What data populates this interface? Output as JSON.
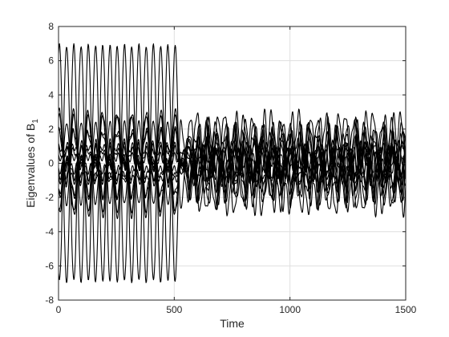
{
  "chart_data": {
    "type": "line",
    "title": "",
    "xlabel": "Time",
    "ylabel": {
      "text": "Eigenvalues of B",
      "subscript": "1"
    },
    "xlim": [
      0,
      1500
    ],
    "ylim": [
      -8,
      8
    ],
    "x_ticks": [
      0,
      500,
      1000,
      1500
    ],
    "x_tick_labels": [
      "0",
      "500",
      "1000",
      "1500"
    ],
    "y_ticks": [
      -8,
      -6,
      -4,
      -2,
      0,
      2,
      4,
      6,
      8
    ],
    "y_tick_labels": [
      "-8",
      "-6",
      "-4",
      "-2",
      "0",
      "2",
      "4",
      "6",
      "8"
    ],
    "grid": true,
    "legend": "none",
    "line_color": "#000000",
    "transition_time": 520,
    "period_before": 62.5,
    "period_after": 40,
    "series_count": 16,
    "series_amplitude_before": [
      6.9,
      -6.9,
      2.6,
      -2.6,
      2.0,
      -2.0,
      1.5,
      -1.5,
      1.1,
      -1.1,
      0.8,
      -0.8,
      0.5,
      -0.5,
      0.3,
      -0.3
    ],
    "series_offset_before": [
      0,
      0,
      0.2,
      -0.2,
      1.0,
      -1.0,
      0.3,
      -0.3,
      0.8,
      -0.8,
      0.0,
      0.0,
      0.5,
      -0.5,
      0.1,
      -0.1
    ],
    "series_amplitude_after": [
      1.3,
      -1.3,
      1.1,
      -1.1,
      0.9,
      -0.9,
      1.2,
      -1.2,
      0.8,
      -0.8,
      1.0,
      -1.0,
      0.7,
      -0.7,
      0.6,
      -0.6
    ],
    "series_offset_after": [
      1.2,
      -1.2,
      0.6,
      -0.6,
      0.2,
      -0.2,
      0.9,
      -0.9,
      0.4,
      -0.4,
      1.5,
      -1.5,
      0.0,
      0.0,
      0.7,
      -0.7
    ]
  }
}
